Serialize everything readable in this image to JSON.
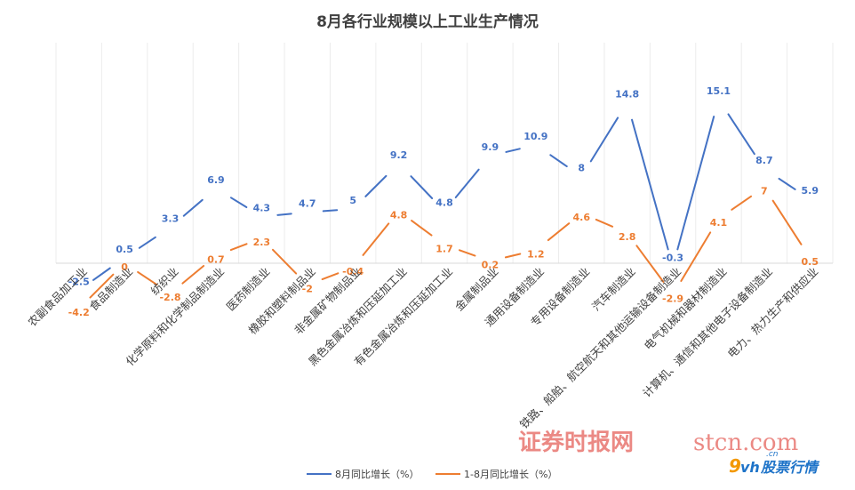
{
  "chart_data": {
    "type": "line",
    "title": "8月各行业规模以上工业生产情况",
    "categories": [
      "农副食品加工业",
      "食品制造业",
      "纺织业",
      "化学原料和化学制品制造业",
      "医药制造业",
      "橡胶和塑料制品业",
      "非金属矿物制品业",
      "黑色金属冶炼和压延加工业",
      "有色金属冶炼和压延加工业",
      "金属制品业",
      "通用设备制造业",
      "专用设备制造业",
      "汽车制造业",
      "铁路、船舶、航空航天和其他运输设备制造业",
      "电气机械和器材制造业",
      "计算机、通信和其他电子设备制造业",
      "电力、热力生产和供应业"
    ],
    "series": [
      {
        "name": "8月同比增长（%）",
        "color": "#4472c4",
        "values": [
          -2.5,
          0.5,
          3.3,
          6.9,
          4.3,
          4.7,
          5,
          9.2,
          4.8,
          9.9,
          10.9,
          8,
          14.8,
          -0.3,
          15.1,
          8.7,
          5.9
        ]
      },
      {
        "name": "1-8月同比增长（%）",
        "color": "#ed7d31",
        "values": [
          -4.2,
          0,
          -2.8,
          0.7,
          2.3,
          -2,
          -0.4,
          4.8,
          1.7,
          0.2,
          1.2,
          4.6,
          2.8,
          -2.9,
          4.1,
          7,
          0.5
        ]
      }
    ],
    "ylim": [
      -5,
      17
    ],
    "grid": "vertical",
    "legend": "bottom"
  },
  "watermarks": {
    "stcn_cn": "证券时报网",
    "stcn_url": "stcn.com",
    "vh_num": "9",
    "vh_text": "vh",
    "vh_cn": ".cn",
    "vh_name": "股票行情"
  }
}
